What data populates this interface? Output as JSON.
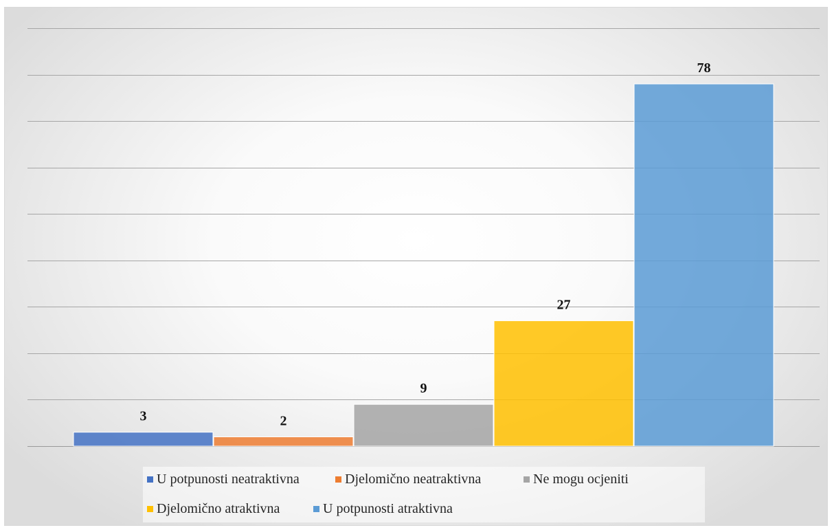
{
  "chart_data": {
    "type": "bar",
    "categories": [
      "U potpunosti neatraktivna",
      "Djelomično neatraktivna",
      "Ne mogu ocjeniti",
      "Djelomično atraktivna",
      "U potpunosti atraktivna"
    ],
    "values": [
      3,
      2,
      9,
      27,
      78
    ],
    "colors": [
      "#4472C4",
      "#ED7D31",
      "#A5A5A5",
      "#FFC000",
      "#5B9BD5"
    ],
    "data_labels": [
      "3",
      "2",
      "9",
      "27",
      "78"
    ],
    "ylim": [
      0,
      90
    ],
    "grid": true,
    "legend_position": "bottom",
    "legend": [
      "U potpunosti neatraktivna",
      "Djelomično neatraktivna",
      "Ne mogu ocjeniti",
      "Djelomično atraktivna",
      "U potpunosti atraktivna"
    ]
  }
}
